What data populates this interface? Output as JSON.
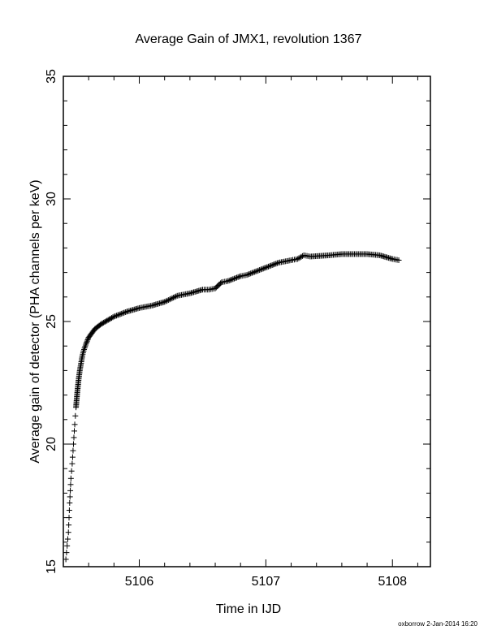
{
  "chart_data": {
    "type": "scatter",
    "title": "Average Gain of JMX1, revolution 1367",
    "xlabel": "Time in IJD",
    "ylabel": "Average gain of detector (PHA channels per keV)",
    "xlim": [
      5105.4,
      5108.3
    ],
    "ylim": [
      15,
      35
    ],
    "xticks": [
      5106,
      5107,
      5108
    ],
    "yticks": [
      15,
      20,
      25,
      30,
      35
    ],
    "grid": false,
    "marker": "plus",
    "series": [
      {
        "x": [
          5105.42,
          5105.44,
          5105.45,
          5105.46,
          5105.47,
          5105.48,
          5105.49,
          5105.5,
          5105.51,
          5105.52,
          5105.53,
          5105.54,
          5105.55,
          5105.56,
          5105.58,
          5105.6,
          5105.65,
          5105.7,
          5105.8,
          5105.9,
          5106.0,
          5106.1,
          5106.2,
          5106.3,
          5106.4,
          5106.5,
          5106.55,
          5106.6,
          5106.65,
          5106.7,
          5106.8,
          5106.85,
          5106.9,
          5107.0,
          5107.1,
          5107.2,
          5107.25,
          5107.3,
          5107.35,
          5107.5,
          5107.6,
          5107.7,
          5107.8,
          5107.9,
          5108.0,
          5108.05
        ],
        "y": [
          15.3,
          16.4,
          17.6,
          18.6,
          19.2,
          20.0,
          20.8,
          21.5,
          22.1,
          22.6,
          23.0,
          23.3,
          23.6,
          23.8,
          24.1,
          24.35,
          24.7,
          24.9,
          25.2,
          25.4,
          25.55,
          25.65,
          25.8,
          26.05,
          26.15,
          26.3,
          26.3,
          26.35,
          26.6,
          26.65,
          26.85,
          26.9,
          27.0,
          27.2,
          27.4,
          27.5,
          27.55,
          27.7,
          27.65,
          27.7,
          27.75,
          27.75,
          27.75,
          27.7,
          27.55,
          27.5
        ]
      }
    ]
  },
  "footer": {
    "credit": "oxborrow  2-Jan-2014 16:20"
  }
}
